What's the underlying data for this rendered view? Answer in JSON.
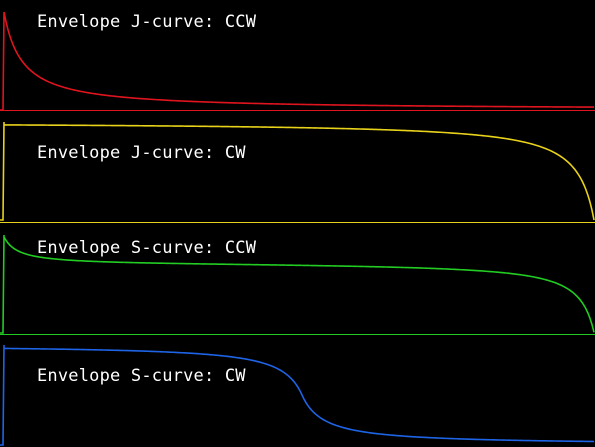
{
  "panels": [
    {
      "label": "Envelope J-curve: CCW",
      "color": "#e0141e"
    },
    {
      "label": "Envelope J-curve: CW",
      "color": "#e8d21a"
    },
    {
      "label": "Envelope S-curve: CCW",
      "color": "#22cc22"
    },
    {
      "label": "Envelope S-curve: CW",
      "color": "#1e64e6"
    }
  ]
}
